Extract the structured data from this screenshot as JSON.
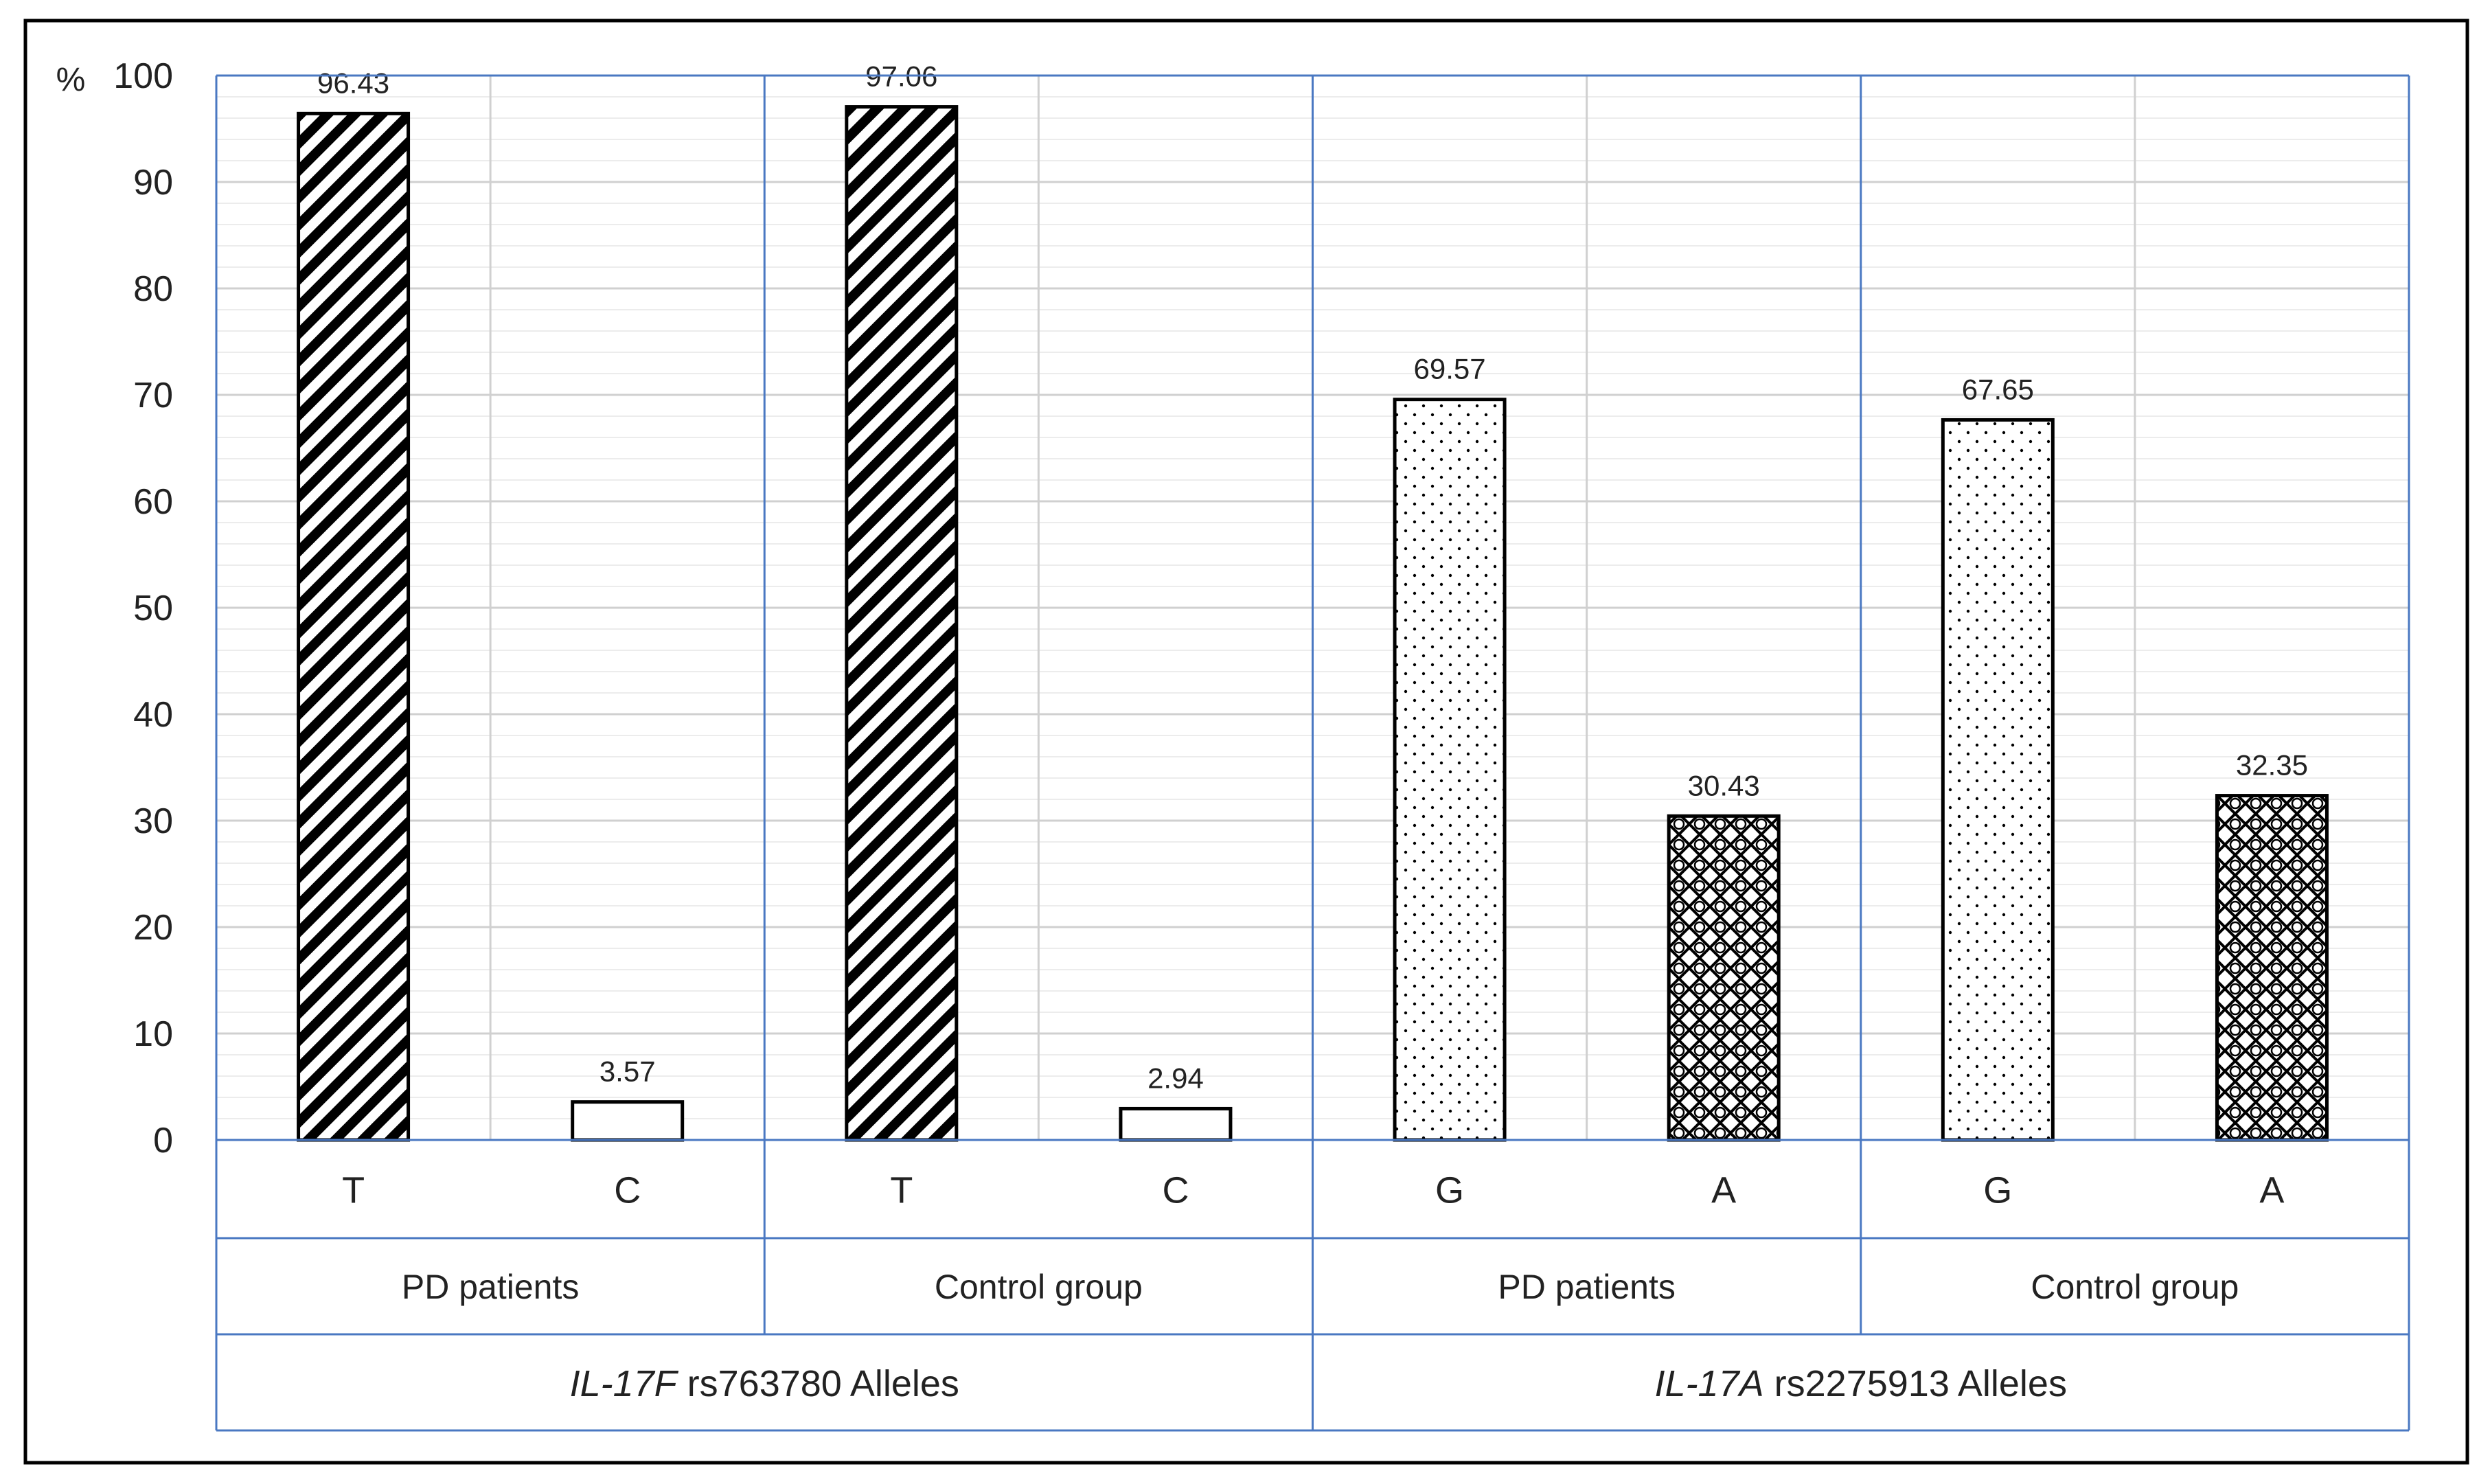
{
  "chart_data": {
    "type": "bar",
    "ylabel": "%",
    "ylim": [
      0,
      100
    ],
    "ytick_step": 10,
    "minor_grid_step": 2,
    "grid": true,
    "legend": "none",
    "yticks": [
      "0",
      "10",
      "20",
      "30",
      "40",
      "50",
      "60",
      "70",
      "80",
      "90",
      "100"
    ],
    "categories": [
      "T",
      "C",
      "T",
      "C",
      "G",
      "A",
      "G",
      "A"
    ],
    "values": [
      96.43,
      3.57,
      97.06,
      2.94,
      69.57,
      30.43,
      67.65,
      32.35
    ],
    "value_labels": [
      "96.43",
      "3.57",
      "97.06",
      "2.94",
      "69.57",
      "30.43",
      "67.65",
      "32.35"
    ],
    "bar_patterns": [
      "diagonal",
      "plain",
      "diagonal",
      "plain",
      "dots",
      "crosshatch",
      "dots",
      "crosshatch"
    ],
    "groups": [
      "PD patients",
      "Control group",
      "PD patients",
      "Control group"
    ],
    "supergroups": [
      {
        "italic": "IL-17F",
        "rest": " rs763780 Alleles"
      },
      {
        "italic": "IL-17A",
        "rest": " rs2275913 Alleles"
      }
    ]
  },
  "colors": {
    "major_grid": "#d0d0d0",
    "minor_grid": "#ececec",
    "frame_blue": "#4a78c2",
    "bar_stroke": "#000000",
    "text": "#222222"
  }
}
